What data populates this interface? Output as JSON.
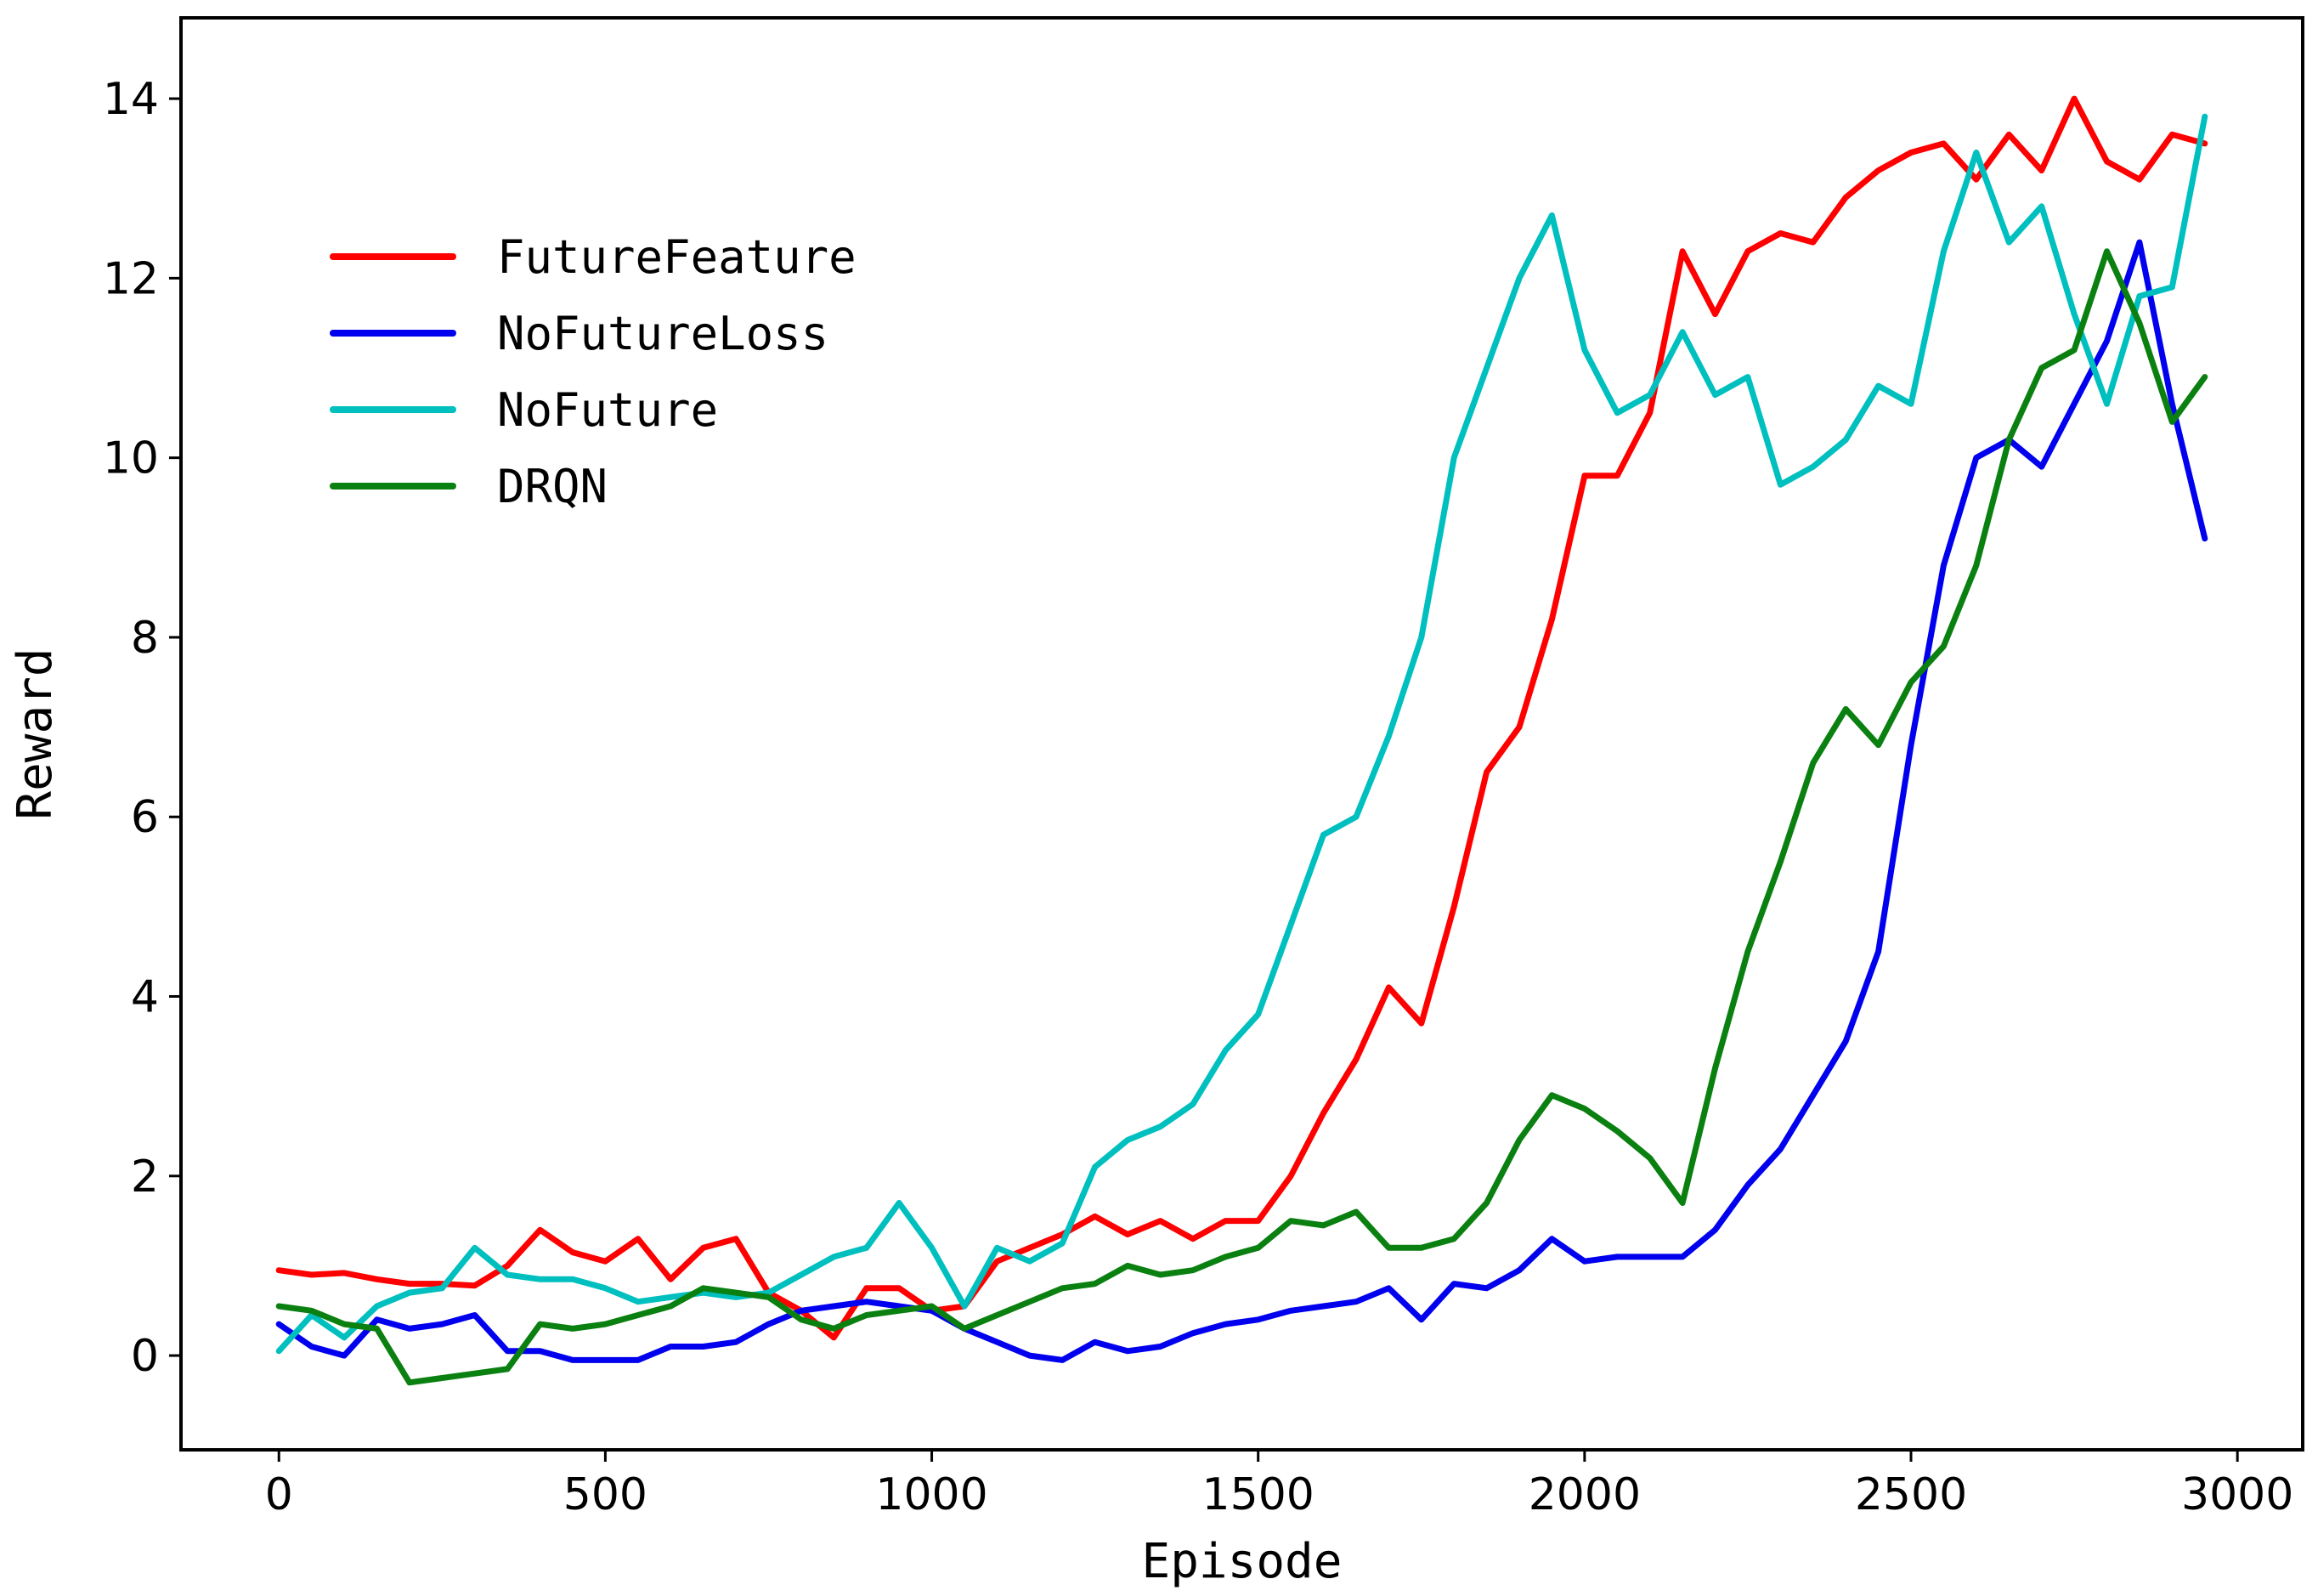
{
  "chart_data": {
    "type": "line",
    "title": "",
    "xlabel": "Episode",
    "ylabel": "Reward",
    "xlim": [
      -150,
      3100
    ],
    "ylim": [
      -1.05,
      14.9
    ],
    "xticks": [
      0,
      500,
      1000,
      1500,
      2000,
      2500,
      3000
    ],
    "xtick_labels": [
      "0",
      "500",
      "1000",
      "1500",
      "2000",
      "2500",
      "3000"
    ],
    "yticks": [
      0,
      2,
      4,
      6,
      8,
      10,
      12,
      14
    ],
    "ytick_labels": [
      "0",
      "2",
      "4",
      "6",
      "8",
      "10",
      "12",
      "14"
    ],
    "grid": false,
    "legend_position": "upper-left",
    "series": [
      {
        "name": "FutureFeature",
        "color": "#ff0000",
        "points": [
          [
            0,
            0.95
          ],
          [
            50,
            0.9
          ],
          [
            100,
            0.92
          ],
          [
            150,
            0.85
          ],
          [
            200,
            0.8
          ],
          [
            250,
            0.8
          ],
          [
            300,
            0.78
          ],
          [
            350,
            1.0
          ],
          [
            400,
            1.4
          ],
          [
            450,
            1.15
          ],
          [
            500,
            1.05
          ],
          [
            550,
            1.3
          ],
          [
            600,
            0.85
          ],
          [
            650,
            1.2
          ],
          [
            700,
            1.3
          ],
          [
            750,
            0.7
          ],
          [
            800,
            0.5
          ],
          [
            850,
            0.2
          ],
          [
            900,
            0.75
          ],
          [
            950,
            0.75
          ],
          [
            1000,
            0.5
          ],
          [
            1050,
            0.55
          ],
          [
            1100,
            1.05
          ],
          [
            1150,
            1.2
          ],
          [
            1200,
            1.35
          ],
          [
            1250,
            1.55
          ],
          [
            1300,
            1.35
          ],
          [
            1350,
            1.5
          ],
          [
            1400,
            1.3
          ],
          [
            1450,
            1.5
          ],
          [
            1500,
            1.5
          ],
          [
            1550,
            2.0
          ],
          [
            1600,
            2.7
          ],
          [
            1650,
            3.3
          ],
          [
            1700,
            4.1
          ],
          [
            1750,
            3.7
          ],
          [
            1800,
            5.0
          ],
          [
            1850,
            6.5
          ],
          [
            1900,
            7.0
          ],
          [
            1950,
            8.2
          ],
          [
            2000,
            9.8
          ],
          [
            2050,
            9.8
          ],
          [
            2100,
            10.5
          ],
          [
            2150,
            12.3
          ],
          [
            2200,
            11.6
          ],
          [
            2250,
            12.3
          ],
          [
            2300,
            12.5
          ],
          [
            2350,
            12.4
          ],
          [
            2400,
            12.9
          ],
          [
            2450,
            13.2
          ],
          [
            2500,
            13.4
          ],
          [
            2550,
            13.5
          ],
          [
            2600,
            13.1
          ],
          [
            2650,
            13.6
          ],
          [
            2700,
            13.2
          ],
          [
            2750,
            14.0
          ],
          [
            2800,
            13.3
          ],
          [
            2850,
            13.1
          ],
          [
            2900,
            13.6
          ],
          [
            2950,
            13.5
          ]
        ]
      },
      {
        "name": "NoFutureLoss",
        "color": "#0000ee",
        "points": [
          [
            0,
            0.35
          ],
          [
            50,
            0.1
          ],
          [
            100,
            0.0
          ],
          [
            150,
            0.4
          ],
          [
            200,
            0.3
          ],
          [
            250,
            0.35
          ],
          [
            300,
            0.45
          ],
          [
            350,
            0.05
          ],
          [
            400,
            0.05
          ],
          [
            450,
            -0.05
          ],
          [
            500,
            -0.05
          ],
          [
            550,
            -0.05
          ],
          [
            600,
            0.1
          ],
          [
            650,
            0.1
          ],
          [
            700,
            0.15
          ],
          [
            750,
            0.35
          ],
          [
            800,
            0.5
          ],
          [
            850,
            0.55
          ],
          [
            900,
            0.6
          ],
          [
            950,
            0.55
          ],
          [
            1000,
            0.5
          ],
          [
            1050,
            0.3
          ],
          [
            1100,
            0.15
          ],
          [
            1150,
            0.0
          ],
          [
            1200,
            -0.05
          ],
          [
            1250,
            0.15
          ],
          [
            1300,
            0.05
          ],
          [
            1350,
            0.1
          ],
          [
            1400,
            0.25
          ],
          [
            1450,
            0.35
          ],
          [
            1500,
            0.4
          ],
          [
            1550,
            0.5
          ],
          [
            1600,
            0.55
          ],
          [
            1650,
            0.6
          ],
          [
            1700,
            0.75
          ],
          [
            1750,
            0.4
          ],
          [
            1800,
            0.8
          ],
          [
            1850,
            0.75
          ],
          [
            1900,
            0.95
          ],
          [
            1950,
            1.3
          ],
          [
            2000,
            1.05
          ],
          [
            2050,
            1.1
          ],
          [
            2100,
            1.1
          ],
          [
            2150,
            1.1
          ],
          [
            2200,
            1.4
          ],
          [
            2250,
            1.9
          ],
          [
            2300,
            2.3
          ],
          [
            2350,
            2.9
          ],
          [
            2400,
            3.5
          ],
          [
            2450,
            4.5
          ],
          [
            2500,
            6.8
          ],
          [
            2550,
            8.8
          ],
          [
            2600,
            10.0
          ],
          [
            2650,
            10.2
          ],
          [
            2700,
            9.9
          ],
          [
            2750,
            10.6
          ],
          [
            2800,
            11.3
          ],
          [
            2850,
            12.4
          ],
          [
            2900,
            10.6
          ],
          [
            2950,
            9.1
          ]
        ]
      },
      {
        "name": "NoFuture",
        "color": "#00bfbf",
        "points": [
          [
            0,
            0.05
          ],
          [
            50,
            0.45
          ],
          [
            100,
            0.2
          ],
          [
            150,
            0.55
          ],
          [
            200,
            0.7
          ],
          [
            250,
            0.75
          ],
          [
            300,
            1.2
          ],
          [
            350,
            0.9
          ],
          [
            400,
            0.85
          ],
          [
            450,
            0.85
          ],
          [
            500,
            0.75
          ],
          [
            550,
            0.6
          ],
          [
            600,
            0.65
          ],
          [
            650,
            0.7
          ],
          [
            700,
            0.65
          ],
          [
            750,
            0.7
          ],
          [
            800,
            0.9
          ],
          [
            850,
            1.1
          ],
          [
            900,
            1.2
          ],
          [
            950,
            1.7
          ],
          [
            1000,
            1.2
          ],
          [
            1050,
            0.55
          ],
          [
            1100,
            1.2
          ],
          [
            1150,
            1.05
          ],
          [
            1200,
            1.25
          ],
          [
            1250,
            2.1
          ],
          [
            1300,
            2.4
          ],
          [
            1350,
            2.55
          ],
          [
            1400,
            2.8
          ],
          [
            1450,
            3.4
          ],
          [
            1500,
            3.8
          ],
          [
            1550,
            4.8
          ],
          [
            1600,
            5.8
          ],
          [
            1650,
            6.0
          ],
          [
            1700,
            6.9
          ],
          [
            1750,
            8.0
          ],
          [
            1800,
            10.0
          ],
          [
            1850,
            11.0
          ],
          [
            1900,
            12.0
          ],
          [
            1950,
            12.7
          ],
          [
            2000,
            11.2
          ],
          [
            2050,
            10.5
          ],
          [
            2100,
            10.7
          ],
          [
            2150,
            11.4
          ],
          [
            2200,
            10.7
          ],
          [
            2250,
            10.9
          ],
          [
            2300,
            9.7
          ],
          [
            2350,
            9.9
          ],
          [
            2400,
            10.2
          ],
          [
            2450,
            10.8
          ],
          [
            2500,
            10.6
          ],
          [
            2550,
            12.3
          ],
          [
            2600,
            13.4
          ],
          [
            2650,
            12.4
          ],
          [
            2700,
            12.8
          ],
          [
            2750,
            11.6
          ],
          [
            2800,
            10.6
          ],
          [
            2850,
            11.8
          ],
          [
            2900,
            11.9
          ],
          [
            2950,
            13.8
          ]
        ]
      },
      {
        "name": "DRQN",
        "color": "#0a8010",
        "points": [
          [
            0,
            0.55
          ],
          [
            50,
            0.5
          ],
          [
            100,
            0.35
          ],
          [
            150,
            0.3
          ],
          [
            200,
            -0.3
          ],
          [
            250,
            -0.25
          ],
          [
            300,
            -0.2
          ],
          [
            350,
            -0.15
          ],
          [
            400,
            0.35
          ],
          [
            450,
            0.3
          ],
          [
            500,
            0.35
          ],
          [
            550,
            0.45
          ],
          [
            600,
            0.55
          ],
          [
            650,
            0.75
          ],
          [
            700,
            0.7
          ],
          [
            750,
            0.65
          ],
          [
            800,
            0.4
          ],
          [
            850,
            0.3
          ],
          [
            900,
            0.45
          ],
          [
            950,
            0.5
          ],
          [
            1000,
            0.55
          ],
          [
            1050,
            0.3
          ],
          [
            1100,
            0.45
          ],
          [
            1150,
            0.6
          ],
          [
            1200,
            0.75
          ],
          [
            1250,
            0.8
          ],
          [
            1300,
            1.0
          ],
          [
            1350,
            0.9
          ],
          [
            1400,
            0.95
          ],
          [
            1450,
            1.1
          ],
          [
            1500,
            1.2
          ],
          [
            1550,
            1.5
          ],
          [
            1600,
            1.45
          ],
          [
            1650,
            1.6
          ],
          [
            1700,
            1.2
          ],
          [
            1750,
            1.2
          ],
          [
            1800,
            1.3
          ],
          [
            1850,
            1.7
          ],
          [
            1900,
            2.4
          ],
          [
            1950,
            2.9
          ],
          [
            2000,
            2.75
          ],
          [
            2050,
            2.5
          ],
          [
            2100,
            2.2
          ],
          [
            2150,
            1.7
          ],
          [
            2200,
            3.2
          ],
          [
            2250,
            4.5
          ],
          [
            2300,
            5.5
          ],
          [
            2350,
            6.6
          ],
          [
            2400,
            7.2
          ],
          [
            2450,
            6.8
          ],
          [
            2500,
            7.5
          ],
          [
            2550,
            7.9
          ],
          [
            2600,
            8.8
          ],
          [
            2650,
            10.2
          ],
          [
            2700,
            11.0
          ],
          [
            2750,
            11.2
          ],
          [
            2800,
            12.3
          ],
          [
            2850,
            11.5
          ],
          [
            2900,
            10.4
          ],
          [
            2950,
            10.9
          ]
        ]
      }
    ]
  }
}
